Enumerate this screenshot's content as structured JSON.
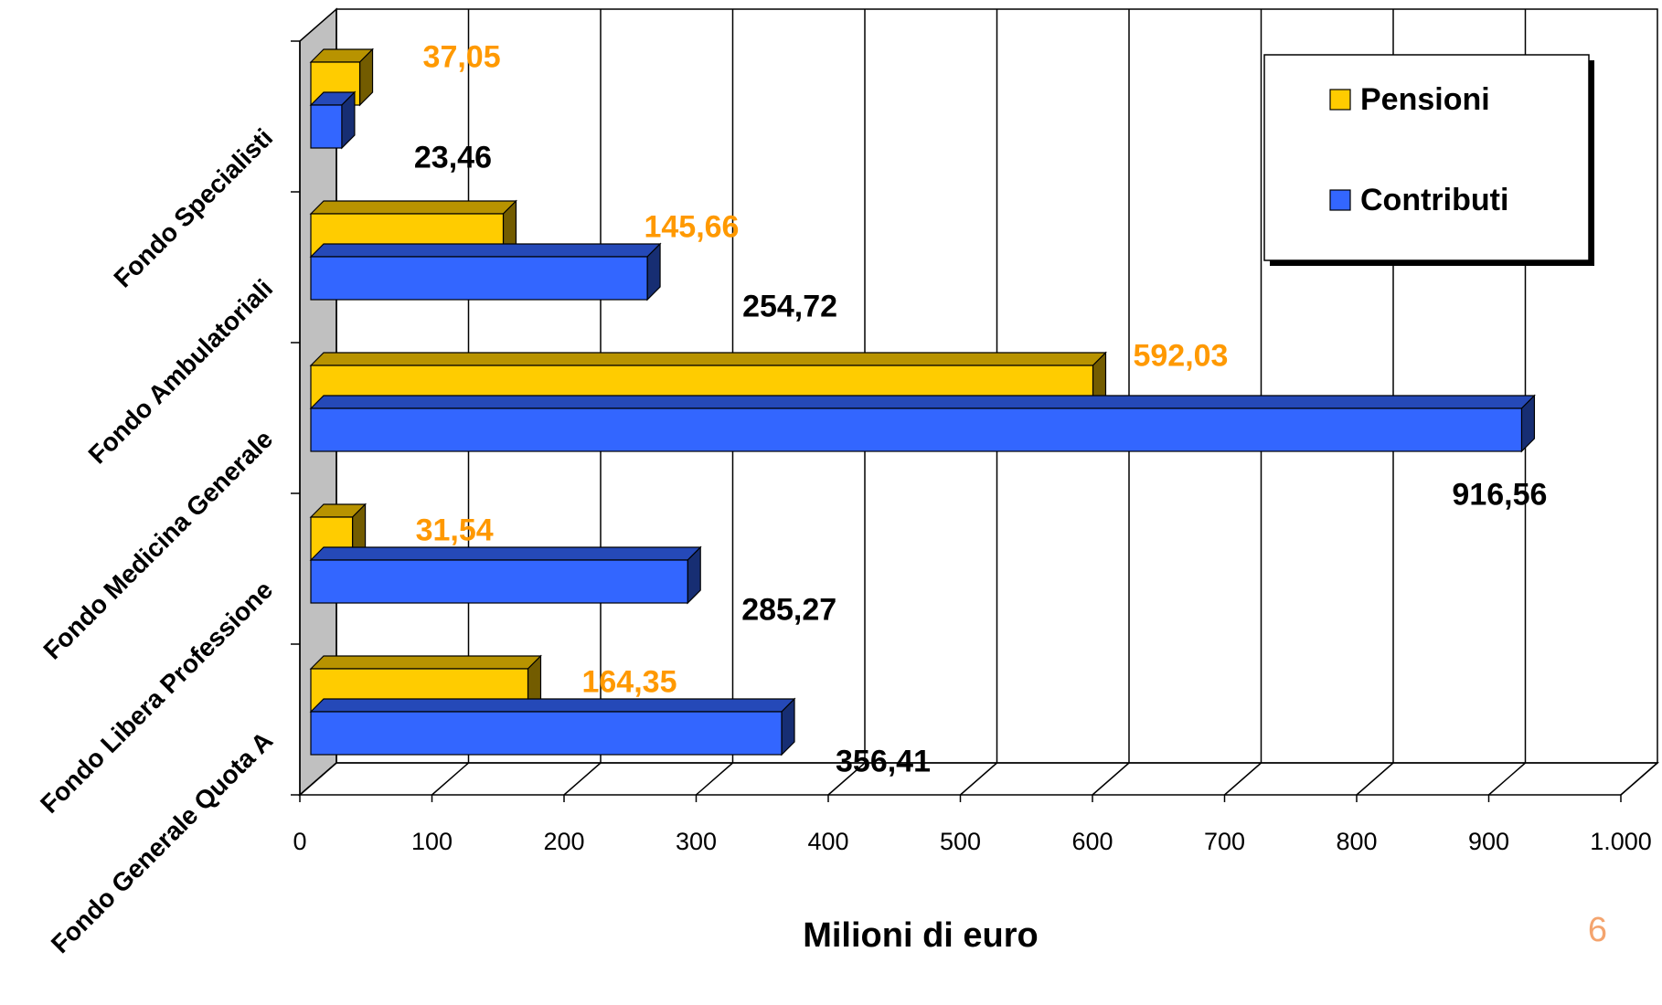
{
  "chart_data": {
    "type": "bar",
    "orientation": "horizontal",
    "style": "3d",
    "categories": [
      "Fondo Specialisti",
      "Fondo Ambulatoriali",
      "Fondo Medicina Generale",
      "Fondo Libera Professione",
      "Fondo Generale Quota A"
    ],
    "series": [
      {
        "name": "Pensioni",
        "color": "#ffcc00",
        "label_color": "#ff9900",
        "values": [
          37.05,
          145.66,
          592.03,
          31.54,
          164.35
        ],
        "value_labels": [
          "37,05",
          "145,66",
          "592,03",
          "31,54",
          "164,35"
        ]
      },
      {
        "name": "Contributi",
        "color": "#3366ff",
        "label_color": "#000000",
        "values": [
          23.46,
          254.72,
          916.56,
          285.27,
          356.41
        ],
        "value_labels": [
          "23,46",
          "254,72",
          "916,56",
          "285,27",
          "356,41"
        ]
      }
    ],
    "xlabel": "Milioni di euro",
    "xlim": [
      0,
      1000
    ],
    "xticks": [
      0,
      100,
      200,
      300,
      400,
      500,
      600,
      700,
      800,
      900,
      1000
    ],
    "xtick_labels": [
      "0",
      "100",
      "200",
      "300",
      "400",
      "500",
      "600",
      "700",
      "800",
      "900",
      "1.000"
    ],
    "grid": true,
    "legend_position": "top-right"
  },
  "page_number": "6"
}
